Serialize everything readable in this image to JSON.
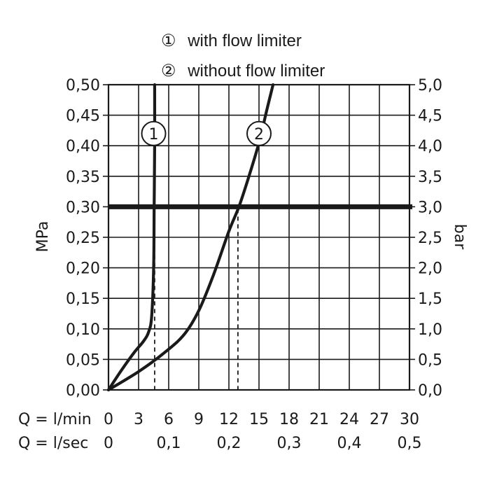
{
  "chart_data": {
    "type": "line",
    "legend": [
      {
        "symbol": "①",
        "label": "with flow limiter"
      },
      {
        "symbol": "②",
        "label": "without flow limiter"
      }
    ],
    "legend_placement": "top-center",
    "ylabel_left": "MPa",
    "ylabel_right": "bar",
    "xlabel_main": "Q = l/min",
    "xlabel_secondary": "Q = l/sec",
    "xlim": [
      0,
      30
    ],
    "ylim": [
      0,
      0.5
    ],
    "grid": true,
    "x_ticks": [
      "0",
      "3",
      "6",
      "9",
      "12",
      "15",
      "18",
      "21",
      "24",
      "27",
      "30"
    ],
    "x_ticks_secondary": [
      {
        "x": 0,
        "label": "0"
      },
      {
        "x": 6,
        "label": "0,1"
      },
      {
        "x": 12,
        "label": "0,2"
      },
      {
        "x": 18,
        "label": "0,3"
      },
      {
        "x": 24,
        "label": "0,4"
      },
      {
        "x": 30,
        "label": "0,5"
      }
    ],
    "y_ticks_left": [
      "0,00",
      "0,05",
      "0,10",
      "0,15",
      "0,20",
      "0,25",
      "0,30",
      "0,35",
      "0,40",
      "0,45",
      "0,50"
    ],
    "y_ticks_right": [
      "0,0",
      "0,5",
      "1,0",
      "1,5",
      "2,0",
      "2,5",
      "3,0",
      "3,5",
      "4,0",
      "4,5",
      "5,0"
    ],
    "reference_line": {
      "y": 0.3
    },
    "series": [
      {
        "marker": "1",
        "label_at": {
          "x": 4.5,
          "y": 0.42
        },
        "drop_at": {
          "x": 4.6,
          "y": 0.3
        },
        "points": [
          {
            "x": 0,
            "y": 0
          },
          {
            "x": 1.2,
            "y": 0.03
          },
          {
            "x": 2.5,
            "y": 0.06
          },
          {
            "x": 3.5,
            "y": 0.08
          },
          {
            "x": 4.0,
            "y": 0.095
          },
          {
            "x": 4.3,
            "y": 0.12
          },
          {
            "x": 4.5,
            "y": 0.2
          },
          {
            "x": 4.55,
            "y": 0.3
          },
          {
            "x": 4.6,
            "y": 0.4
          },
          {
            "x": 4.6,
            "y": 0.5
          }
        ]
      },
      {
        "marker": "2",
        "label_at": {
          "x": 15.0,
          "y": 0.42
        },
        "drop_at": {
          "x": 12.9,
          "y": 0.3
        },
        "points": [
          {
            "x": 0,
            "y": 0
          },
          {
            "x": 3,
            "y": 0.03
          },
          {
            "x": 5.5,
            "y": 0.06
          },
          {
            "x": 7.5,
            "y": 0.09
          },
          {
            "x": 9,
            "y": 0.13
          },
          {
            "x": 10.5,
            "y": 0.19
          },
          {
            "x": 12,
            "y": 0.26
          },
          {
            "x": 13,
            "y": 0.3
          },
          {
            "x": 14,
            "y": 0.35
          },
          {
            "x": 15,
            "y": 0.405
          },
          {
            "x": 15.8,
            "y": 0.46
          },
          {
            "x": 16.4,
            "y": 0.5
          }
        ]
      }
    ]
  }
}
